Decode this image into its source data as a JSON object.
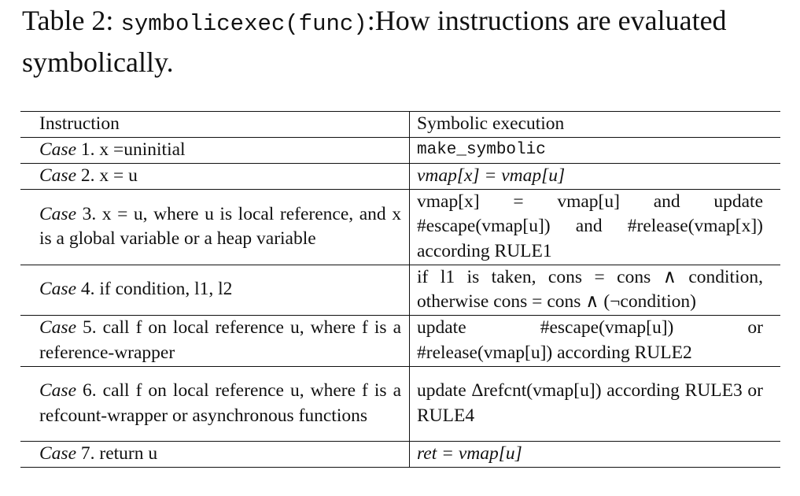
{
  "caption": {
    "prefix": "Table 2: ",
    "code": "symbolicexec(func)",
    "rest": ":How instructions are evaluated symbolically."
  },
  "table": {
    "headers": [
      "Instruction",
      "Symbolic execution"
    ],
    "rows": [
      {
        "case_label": "Case",
        "instr_text": "1. x =uninitial",
        "exec_text": "make_symbolic"
      },
      {
        "case_label": "Case",
        "instr_text": "2. x = u",
        "exec_text": "vmap[x] = vmap[u]"
      },
      {
        "case_label": "Case",
        "instr_text": "3. x = u, where u is local reference, and x is a global variable or a heap variable",
        "exec_text": "vmap[x] = vmap[u] and update #escape(vmap[u]) and #release(vmap[x]) according RULE1"
      },
      {
        "case_label": "Case",
        "instr_text": "4. if condition, l1, l2",
        "exec_text": "if l1 is taken, cons = cons ∧ condition, otherwise cons = cons ∧ (¬condition)"
      },
      {
        "case_label": "Case",
        "instr_text": "5. call f on local reference u, where f is a reference-wrapper",
        "exec_text": "update #escape(vmap[u]) or #release(vmap[u]) according RULE2"
      },
      {
        "case_label": "Case",
        "instr_text": "6. call f on local reference u, where f is a refcount-wrapper or asynchronous functions",
        "exec_text": "update Δrefcnt(vmap[u]) according RULE3 or RULE4"
      },
      {
        "case_label": "Case",
        "instr_text": "7. return u",
        "exec_text": "ret = vmap[u]"
      }
    ]
  }
}
